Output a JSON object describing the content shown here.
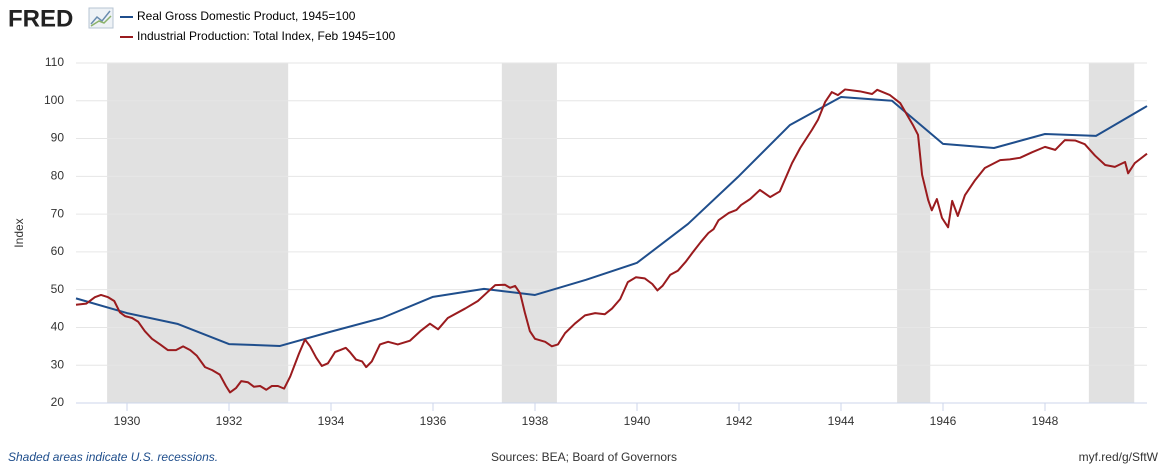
{
  "logo": "FRED",
  "chart_data": {
    "type": "line",
    "ylabel": "Index",
    "footnote": "Shaded areas indicate U.S. recessions.",
    "source": "Sources: BEA; Board of Governors",
    "link": "myf.red/g/SftW",
    "xlim": [
      1929,
      1950
    ],
    "ylim": [
      20,
      110
    ],
    "xticks": [
      1930,
      1932,
      1934,
      1936,
      1938,
      1940,
      1942,
      1944,
      1946,
      1948
    ],
    "yticks": [
      20,
      30,
      40,
      50,
      60,
      70,
      80,
      90,
      100,
      110
    ],
    "grid": true,
    "recession_color": "#e1e1e1",
    "recessions": [
      [
        1929.61,
        1933.16
      ],
      [
        1937.35,
        1938.43
      ],
      [
        1945.1,
        1945.75
      ],
      [
        1948.86,
        1949.75
      ]
    ],
    "series": [
      {
        "name": "Real Gross Domestic Product, 1945=100",
        "color": "#1f4e8c",
        "x": [
          1929,
          1930,
          1931,
          1932,
          1933,
          1934,
          1935,
          1936,
          1937,
          1938,
          1939,
          1940,
          1941,
          1942,
          1943,
          1944,
          1945,
          1946,
          1947,
          1948,
          1949,
          1950
        ],
        "values": [
          47.7,
          43.8,
          40.9,
          35.6,
          35.1,
          38.9,
          42.5,
          48.1,
          50.2,
          48.6,
          52.6,
          57.1,
          67.4,
          80.1,
          93.6,
          101.0,
          100.0,
          88.6,
          87.5,
          91.2,
          90.7,
          98.6
        ]
      },
      {
        "name": "Industrial Production: Total Index, Feb 1945=100",
        "color": "#9a1b1e",
        "x": [
          1929.0,
          1929.2,
          1929.37,
          1929.49,
          1929.63,
          1929.75,
          1929.86,
          1929.96,
          1930.1,
          1930.22,
          1930.35,
          1930.49,
          1930.65,
          1930.8,
          1930.96,
          1931.1,
          1931.24,
          1931.37,
          1931.53,
          1931.67,
          1931.82,
          1931.94,
          1932.02,
          1932.14,
          1932.24,
          1932.37,
          1932.49,
          1932.61,
          1932.73,
          1932.84,
          1932.96,
          1933.08,
          1933.2,
          1933.37,
          1933.49,
          1933.59,
          1933.71,
          1933.82,
          1933.94,
          1934.08,
          1934.18,
          1934.29,
          1934.37,
          1934.49,
          1934.61,
          1934.69,
          1934.8,
          1934.96,
          1935.12,
          1935.31,
          1935.55,
          1935.75,
          1935.94,
          1936.1,
          1936.29,
          1936.63,
          1936.88,
          1937.08,
          1937.22,
          1937.41,
          1937.51,
          1937.61,
          1937.71,
          1937.8,
          1937.9,
          1938.0,
          1938.2,
          1938.33,
          1938.45,
          1938.59,
          1938.78,
          1938.98,
          1939.18,
          1939.37,
          1939.51,
          1939.67,
          1939.82,
          1939.98,
          1940.15,
          1940.3,
          1940.4,
          1940.5,
          1940.65,
          1940.8,
          1940.95,
          1941.1,
          1941.25,
          1941.4,
          1941.5,
          1941.6,
          1941.8,
          1941.95,
          1942.04,
          1942.22,
          1942.41,
          1942.61,
          1942.8,
          1943.04,
          1943.2,
          1943.43,
          1943.55,
          1943.69,
          1943.82,
          1943.94,
          1944.08,
          1944.37,
          1944.61,
          1944.71,
          1944.96,
          1945.16,
          1945.41,
          1945.51,
          1945.59,
          1945.71,
          1945.78,
          1945.88,
          1945.98,
          1946.1,
          1946.18,
          1946.29,
          1946.43,
          1946.63,
          1946.82,
          1947.12,
          1947.31,
          1947.51,
          1947.75,
          1948.0,
          1948.2,
          1948.39,
          1948.59,
          1948.78,
          1948.98,
          1949.18,
          1949.37,
          1949.57,
          1949.63,
          1949.76,
          1950.0
        ],
        "values": [
          46,
          46.3,
          48,
          48.6,
          48,
          47,
          44,
          43,
          42.5,
          41.5,
          39,
          37,
          35.5,
          34,
          34,
          35,
          34,
          32.5,
          29.5,
          28.7,
          27.5,
          24.5,
          22.8,
          24,
          25.8,
          25.5,
          24.3,
          24.5,
          23.5,
          24.5,
          24.5,
          23.8,
          27,
          33,
          36.8,
          35,
          32,
          29.8,
          30.5,
          33.5,
          34,
          34.6,
          33.5,
          31.5,
          31,
          29.5,
          31,
          35.5,
          36.2,
          35.5,
          36.5,
          39,
          41,
          39.5,
          42.5,
          45,
          47,
          49.5,
          51.2,
          51.3,
          50.5,
          51,
          49,
          44,
          39,
          37,
          36.2,
          35,
          35.5,
          38.5,
          41,
          43.2,
          43.8,
          43.5,
          45,
          47.5,
          52,
          53.3,
          53,
          51.5,
          49.8,
          51,
          53.9,
          55,
          57.3,
          60,
          62.6,
          65,
          66,
          68.4,
          70.3,
          71.1,
          72.4,
          74,
          76.4,
          74.5,
          76,
          83.5,
          87.5,
          92.3,
          95,
          99.7,
          102.3,
          101.5,
          103,
          102.5,
          101.8,
          102.9,
          101.5,
          99.4,
          93.6,
          91,
          80.4,
          73.7,
          71,
          74,
          69,
          66.5,
          73.5,
          69.5,
          75,
          79,
          82.2,
          84.3,
          84.5,
          84.9,
          86.4,
          87.8,
          87,
          89.6,
          89.5,
          88.5,
          85.5,
          83,
          82.5,
          83.8,
          80.8,
          83.5,
          86
        ]
      }
    ]
  }
}
